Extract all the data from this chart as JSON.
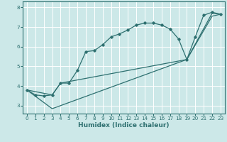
{
  "xlabel": "Humidex (Indice chaleur)",
  "bg_color": "#cce8e8",
  "line_color": "#2e7070",
  "grid_color": "#ffffff",
  "xlim": [
    -0.5,
    23.5
  ],
  "ylim": [
    2.6,
    8.3
  ],
  "xticks": [
    0,
    1,
    2,
    3,
    4,
    5,
    6,
    7,
    8,
    9,
    10,
    11,
    12,
    13,
    14,
    15,
    16,
    17,
    18,
    19,
    20,
    21,
    22,
    23
  ],
  "yticks": [
    3,
    4,
    5,
    6,
    7,
    8
  ],
  "curve_x": [
    0,
    1,
    2,
    3,
    4,
    5,
    6,
    7,
    8,
    9,
    10,
    11,
    12,
    13,
    14,
    15,
    16,
    17,
    18,
    19,
    20,
    21,
    22,
    23
  ],
  "curve_y": [
    3.8,
    3.55,
    3.5,
    3.55,
    4.15,
    4.15,
    4.8,
    5.75,
    5.8,
    6.1,
    6.5,
    6.65,
    6.85,
    7.1,
    7.2,
    7.2,
    7.1,
    6.9,
    6.4,
    5.35,
    6.5,
    7.6,
    7.75,
    7.65
  ],
  "line1_x": [
    0,
    3,
    19,
    22,
    23
  ],
  "line1_y": [
    3.8,
    2.85,
    5.35,
    7.7,
    7.65
  ],
  "line2_x": [
    0,
    3,
    4,
    19,
    22,
    23
  ],
  "line2_y": [
    3.8,
    3.55,
    4.15,
    5.35,
    7.55,
    7.65
  ],
  "xlabel_fontsize": 6.5,
  "tick_fontsize": 5.2
}
